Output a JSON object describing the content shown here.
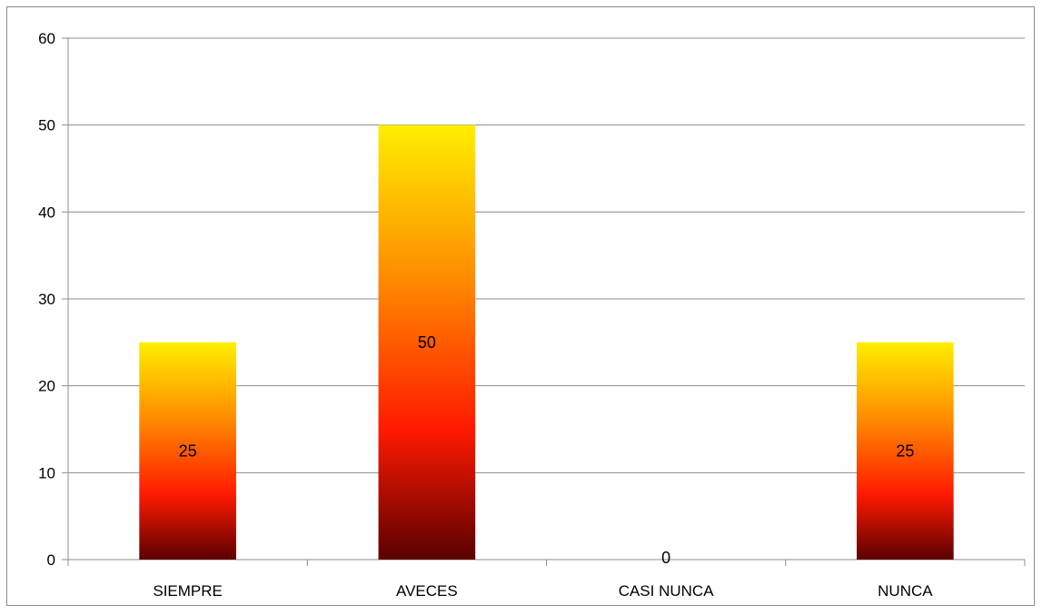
{
  "chart_data": {
    "type": "bar",
    "categories": [
      "SIEMPRE",
      "AVECES",
      "CASI NUNCA",
      "NUNCA"
    ],
    "values": [
      25,
      50,
      0,
      25
    ],
    "data_labels": [
      "25",
      "50",
      "0",
      "25"
    ],
    "ylim": [
      0,
      60
    ],
    "yticks": [
      0,
      10,
      20,
      30,
      40,
      50,
      60
    ],
    "grid": true,
    "legend": "none",
    "title": "",
    "xlabel": "",
    "ylabel": "",
    "bar_gradient": {
      "top": "#ffee00",
      "mid_upper": "#ff8c00",
      "mid": "#ff1a00",
      "bottom": "#5a0000"
    },
    "gridline_color": "#8c8c8c"
  }
}
